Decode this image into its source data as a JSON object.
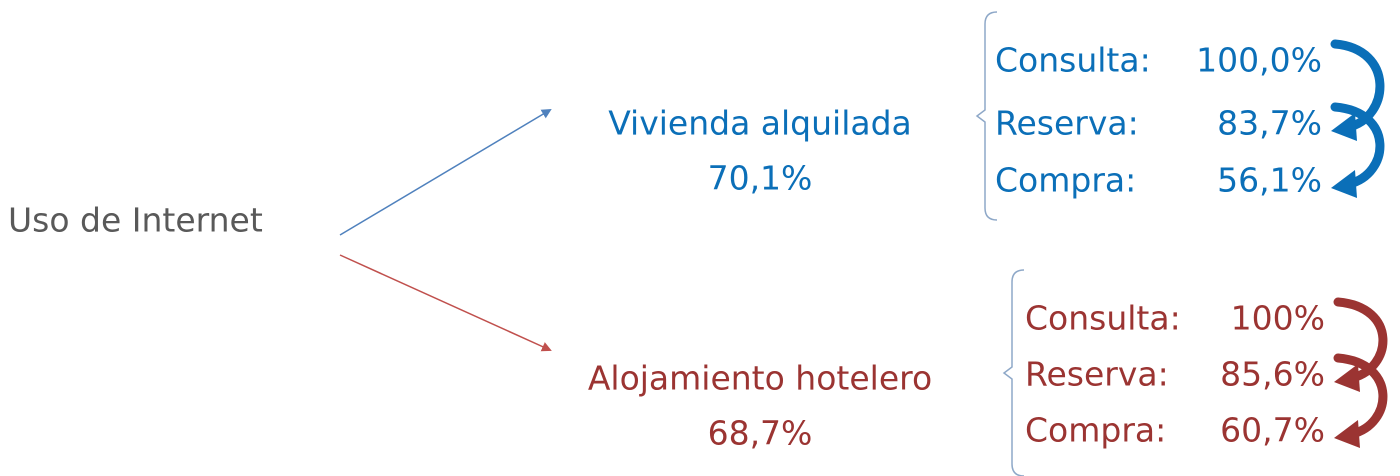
{
  "root": {
    "label": "Uso de Internet"
  },
  "branches": [
    {
      "label": "Vivienda alquilada",
      "share": "70,1%",
      "color": "#0b6fb8",
      "steps": [
        {
          "label": "Consulta:",
          "value": "100,0%"
        },
        {
          "label": "Reserva:",
          "value": "83,7%"
        },
        {
          "label": "Compra:",
          "value": "56,1%"
        }
      ]
    },
    {
      "label": "Alojamiento hotelero",
      "share": "68,7%",
      "color": "#9b3432",
      "steps": [
        {
          "label": "Consulta:",
          "value": "100%"
        },
        {
          "label": "Reserva:",
          "value": "85,6%"
        },
        {
          "label": "Compra:",
          "value": "60,7%"
        }
      ]
    }
  ]
}
